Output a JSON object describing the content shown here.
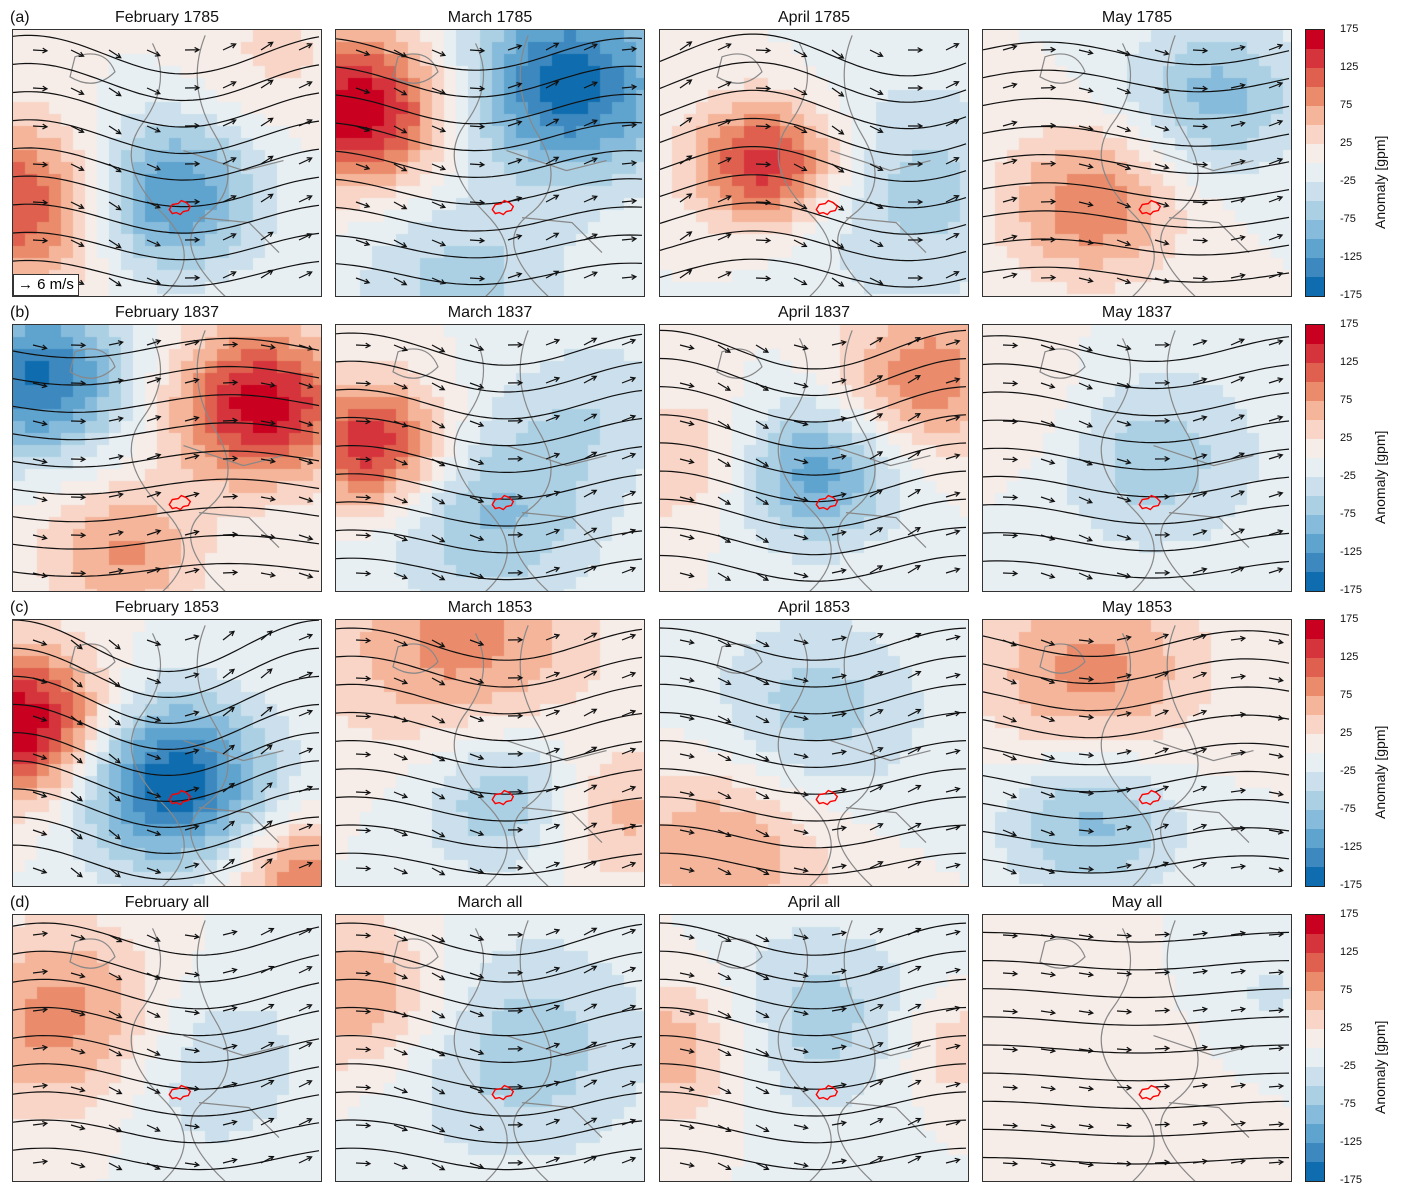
{
  "chart_data": {
    "type": "heatmap",
    "panel_labels": [
      "(a)",
      "(b)",
      "(c)",
      "(d)"
    ],
    "rows": [
      [
        "February 1785",
        "March 1785",
        "April 1785",
        "May 1785"
      ],
      [
        "February 1837",
        "March 1837",
        "April 1837",
        "May 1837"
      ],
      [
        "February 1853",
        "March 1853",
        "April 1853",
        "May 1853"
      ],
      [
        "February all",
        "March all",
        "April all",
        "May all"
      ]
    ],
    "colorbar": {
      "label": "Anomaly [gpm]",
      "ticks": [
        "175",
        "125",
        "75",
        "25",
        "-25",
        "-75",
        "-125",
        "-175"
      ],
      "range": [
        -175,
        175
      ],
      "step": 25,
      "colors": [
        "#ca0020",
        "#d5343c",
        "#e0604f",
        "#ea8c6c",
        "#f4b59b",
        "#f8d5c6",
        "#f6ece8",
        "#e7eff3",
        "#cbe0ec",
        "#abd0e4",
        "#87bbdb",
        "#5fa3cf",
        "#3c88bf",
        "#0f6cae"
      ]
    },
    "vector_reference": "6 m/s",
    "overlays": {
      "streamlines_color": "#111111",
      "coastlines_color": "#888888",
      "highlight_region_color": "#ff0000"
    }
  }
}
